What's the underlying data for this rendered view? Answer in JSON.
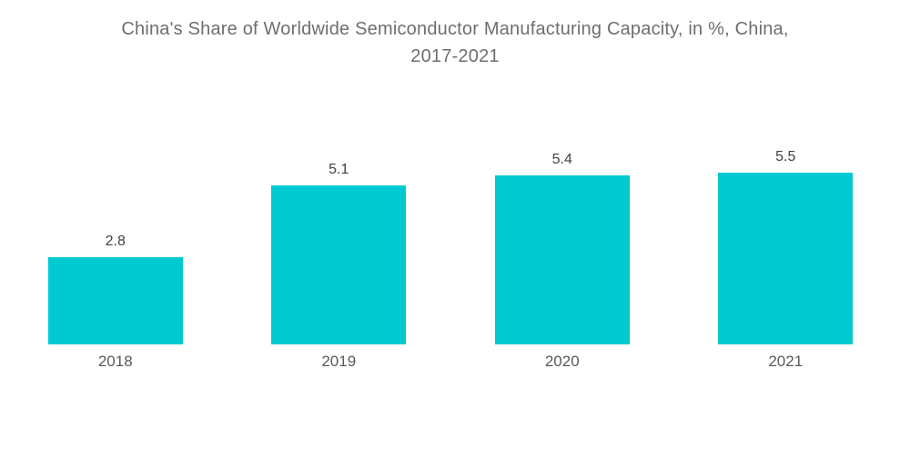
{
  "title": {
    "line1": "China's Share of Worldwide Semiconductor Manufacturing Capacity, in %, China,",
    "line2": "2017-2021"
  },
  "colors": {
    "bar": "#00CAD1",
    "title_text": "#6e6e6e",
    "value_text": "#414141",
    "category_text": "#595959"
  },
  "chart_data": {
    "type": "bar",
    "title": "China's Share of Worldwide Semiconductor Manufacturing Capacity, in %, China, 2017-2021",
    "categories": [
      "2018",
      "2019",
      "2020",
      "2021"
    ],
    "values": [
      2.8,
      5.1,
      5.4,
      5.5
    ],
    "xlabel": "",
    "ylabel": "",
    "ylim": [
      0,
      6
    ],
    "value_labels": true,
    "grid": false,
    "legend": false,
    "axes_visible": false
  }
}
